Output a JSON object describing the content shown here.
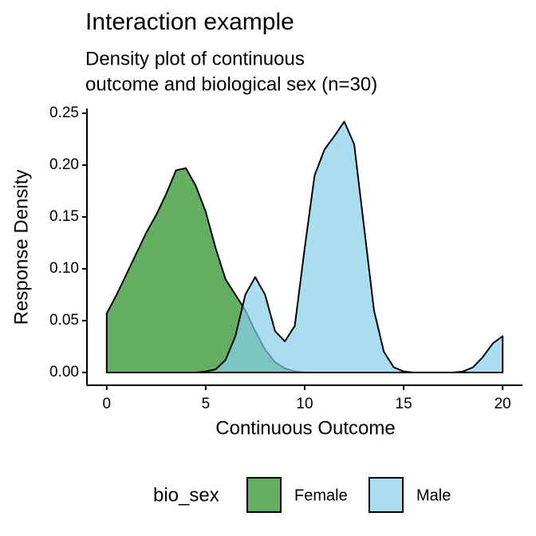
{
  "chart_data": {
    "type": "density",
    "title": "Interaction example",
    "subtitle": [
      "Density plot of continuous",
      "outcome and biological sex (n=30)"
    ],
    "x_label": "Continuous Outcome",
    "y_label": "Response Density",
    "legend_title": "bio_sex",
    "legend_position": "bottom",
    "alpha": 0.7,
    "x": [
      0,
      0.5,
      1,
      1.5,
      2,
      2.5,
      3,
      3.5,
      4,
      4.5,
      5,
      5.5,
      6,
      6.5,
      7,
      7.5,
      8,
      8.5,
      9,
      9.5,
      10,
      10.5,
      11,
      11.5,
      12,
      12.5,
      13,
      13.5,
      14,
      14.5,
      15,
      15.5,
      16,
      16.5,
      17,
      17.5,
      18,
      18.5,
      19,
      19.5,
      20
    ],
    "series": [
      {
        "name": "Female",
        "color": "#228b22",
        "values": [
          0.057,
          0.075,
          0.095,
          0.115,
          0.135,
          0.152,
          0.172,
          0.195,
          0.197,
          0.18,
          0.155,
          0.12,
          0.09,
          0.075,
          0.06,
          0.04,
          0.022,
          0.01,
          0.004,
          0.001,
          0,
          0,
          0,
          0,
          0,
          0,
          0,
          0,
          0,
          0,
          0,
          0,
          0,
          0,
          0,
          0,
          0,
          0,
          0,
          0,
          0
        ]
      },
      {
        "name": "Male",
        "color": "#87ceeb",
        "values": [
          0,
          0,
          0,
          0,
          0,
          0,
          0,
          0,
          0,
          0,
          0.001,
          0.003,
          0.012,
          0.035,
          0.075,
          0.092,
          0.075,
          0.04,
          0.03,
          0.045,
          0.12,
          0.19,
          0.215,
          0.228,
          0.242,
          0.22,
          0.14,
          0.06,
          0.02,
          0.005,
          0.001,
          0,
          0,
          0,
          0,
          0,
          0.001,
          0.005,
          0.015,
          0.028,
          0.035
        ]
      }
    ],
    "xlim": [
      -1,
      21
    ],
    "ylim": [
      -0.0123,
      0.2546
    ],
    "xticks": [
      0,
      5,
      10,
      15,
      20
    ],
    "yticks": [
      {
        "value": 0,
        "label": "0.00"
      },
      {
        "value": 0.05,
        "label": "0.05"
      },
      {
        "value": 0.1,
        "label": "0.10"
      },
      {
        "value": 0.15,
        "label": "0.15"
      },
      {
        "value": 0.2,
        "label": "0.20"
      },
      {
        "value": 0.25,
        "label": "0.25"
      }
    ]
  }
}
